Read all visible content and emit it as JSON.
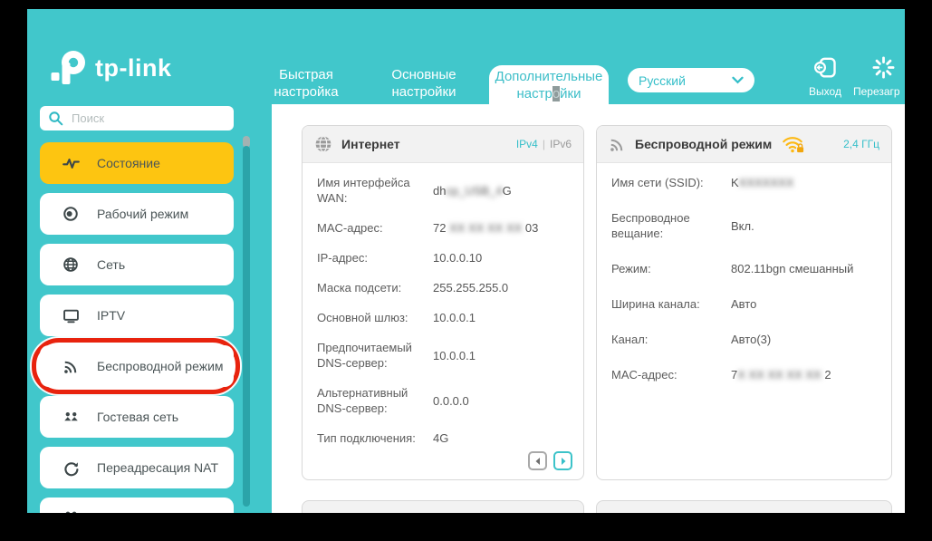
{
  "colors": {
    "teal": "#41C7CB",
    "teal_dark": "#2BA4A9",
    "accent_text": "#35BFC9",
    "active_yellow": "#FDC511",
    "highlight_red": "#E8230E",
    "wifi_yellow": "#FDB913"
  },
  "chrome": {
    "logo_text": "tp-link"
  },
  "nav": {
    "tabs": [
      {
        "label": "Быстрая настройка"
      },
      {
        "label": "Основные настройки"
      },
      {
        "label": "Дополнительные настройки",
        "active": true
      }
    ],
    "tab3_parts": {
      "line1": "Дополнительные",
      "line2_pre": "настр",
      "line2_cursor": "о",
      "line2_post": "йки"
    },
    "language": {
      "value": "Русский"
    },
    "actions": {
      "exit_label": "Выход",
      "reboot_label": "Перезагр"
    }
  },
  "sidebar": {
    "search_placeholder": "Поиск",
    "items": [
      {
        "label": "Состояние",
        "icon": "pulse-icon",
        "active": true
      },
      {
        "label": "Рабочий режим",
        "icon": "mode-icon"
      },
      {
        "label": "Сеть",
        "icon": "globe-icon"
      },
      {
        "label": "IPTV",
        "icon": "tv-icon"
      },
      {
        "label": "Беспроводной режим",
        "icon": "wireless-icon",
        "highlighted": true
      },
      {
        "label": "Гостевая сеть",
        "icon": "guest-icon"
      },
      {
        "label": "Переадресация NAT",
        "icon": "nat-icon"
      },
      {
        "label": "",
        "icon": "partial-icon"
      }
    ]
  },
  "internet_card": {
    "title": "Интернет",
    "ip_tabs": {
      "ipv4": "IPv4",
      "divider": "|",
      "ipv6": "IPv6"
    },
    "rows": [
      {
        "label": "Имя интерфейса WAN:",
        "prefix": "dh",
        "hidden": "cp_USB_4",
        "suffix": "G"
      },
      {
        "label": "MAC-адрес:",
        "prefix": "72",
        "hidden": " XX XX XX XX ",
        "suffix": "03"
      },
      {
        "label": "IP-адрес:",
        "value": "10.0.0.10"
      },
      {
        "label": "Маска подсети:",
        "value": "255.255.255.0"
      },
      {
        "label": "Основной шлюз:",
        "value": "10.0.0.1"
      },
      {
        "label": "Предпочитаемый DNS-сервер:",
        "value": "10.0.0.1"
      },
      {
        "label": "Альтернативный DNS-сервер:",
        "value": "0.0.0.0"
      },
      {
        "label": "Тип подключения:",
        "value": "4G"
      }
    ]
  },
  "wireless_card": {
    "title": "Беспроводной режим",
    "band": "2,4 ГГц",
    "rows": [
      {
        "label": "Имя сети (SSID):",
        "prefix": "K",
        "hidden": "XXXXXXX",
        "suffix": ""
      },
      {
        "label": "Беспроводное вещание:",
        "value": "Вкл."
      },
      {
        "label": "Режим:",
        "value": "802.11bgn смешанный"
      },
      {
        "label": "Ширина канала:",
        "value": "Авто"
      },
      {
        "label": "Канал:",
        "value": "Авто(3)"
      },
      {
        "label": "MAC-адрес:",
        "prefix": "7",
        "hidden": "X XX XX XX XX ",
        "suffix": "2"
      }
    ]
  }
}
